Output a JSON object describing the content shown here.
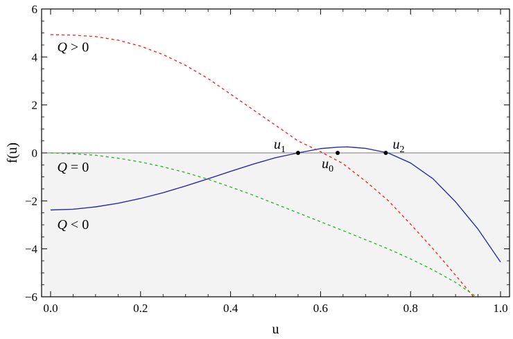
{
  "chart_data": {
    "type": "line",
    "xlabel": "u",
    "ylabel": "f(u)",
    "xlim": [
      -0.02,
      1.02
    ],
    "ylim": [
      -6,
      6
    ],
    "x_ticks": [
      0.0,
      0.2,
      0.4,
      0.6,
      0.8,
      1.0
    ],
    "x_tick_labels": [
      "0.0",
      "0.2",
      "0.4",
      "0.6",
      "0.8",
      "1.0"
    ],
    "y_ticks": [
      -6,
      -4,
      -2,
      0,
      2,
      4,
      6
    ],
    "y_tick_labels": [
      "−6",
      "−4",
      "−2",
      "0",
      "2",
      "4",
      "6"
    ],
    "shaded_region": {
      "from_y": -6,
      "to_y": 0,
      "color": "#f3f3f3"
    },
    "zero_line_color": "#777777",
    "series": [
      {
        "style": "solid",
        "color": "#2b2ba8",
        "x": [
          0.0,
          0.05,
          0.1,
          0.15,
          0.2,
          0.25,
          0.3,
          0.35,
          0.4,
          0.45,
          0.5,
          0.55,
          0.6,
          0.64,
          0.66,
          0.7,
          0.75,
          0.8,
          0.85,
          0.9,
          0.95,
          1.0
        ],
        "y": [
          -2.38,
          -2.35,
          -2.25,
          -2.1,
          -1.9,
          -1.66,
          -1.38,
          -1.08,
          -0.77,
          -0.47,
          -0.2,
          0.0,
          0.18,
          0.24,
          0.25,
          0.19,
          0.0,
          -0.42,
          -1.08,
          -2.04,
          -3.18,
          -4.55
        ]
      },
      {
        "style": "dashed",
        "color": "#ee2a2a",
        "x": [
          0.0,
          0.05,
          0.1,
          0.15,
          0.2,
          0.25,
          0.3,
          0.35,
          0.4,
          0.45,
          0.5,
          0.55,
          0.6,
          0.65,
          0.7,
          0.75,
          0.8,
          0.85,
          0.9,
          0.94
        ],
        "y": [
          4.93,
          4.91,
          4.85,
          4.7,
          4.45,
          4.1,
          3.65,
          3.1,
          2.45,
          1.8,
          1.15,
          0.5,
          0.05,
          -0.45,
          -1.18,
          -1.98,
          -2.97,
          -4.0,
          -5.1,
          -6.0
        ]
      },
      {
        "style": "dashed",
        "color": "#2fb52f",
        "x": [
          0.0,
          0.05,
          0.1,
          0.15,
          0.2,
          0.25,
          0.3,
          0.35,
          0.4,
          0.45,
          0.5,
          0.55,
          0.6,
          0.65,
          0.7,
          0.75,
          0.8,
          0.85,
          0.9,
          0.95
        ],
        "y": [
          0.0,
          -0.03,
          -0.1,
          -0.22,
          -0.38,
          -0.58,
          -0.82,
          -1.1,
          -1.42,
          -1.76,
          -2.13,
          -2.5,
          -2.87,
          -3.24,
          -3.62,
          -4.0,
          -4.42,
          -4.88,
          -5.4,
          -6.05
        ]
      }
    ],
    "points": [
      {
        "x": 0.55,
        "y": 0.0,
        "label": "u",
        "sub": "1"
      },
      {
        "x": 0.638,
        "y": 0.0,
        "label": "u",
        "sub": "0"
      },
      {
        "x": 0.745,
        "y": 0.0,
        "label": "u",
        "sub": "2"
      }
    ],
    "annotations": [
      {
        "q": "Q",
        "rel": " > 0",
        "x": 0.01,
        "y": 4.4
      },
      {
        "q": "Q",
        "rel": " = 0",
        "x": 0.01,
        "y": -0.6
      },
      {
        "q": "Q",
        "rel": " < 0",
        "x": 0.01,
        "y": -3.0
      }
    ]
  }
}
